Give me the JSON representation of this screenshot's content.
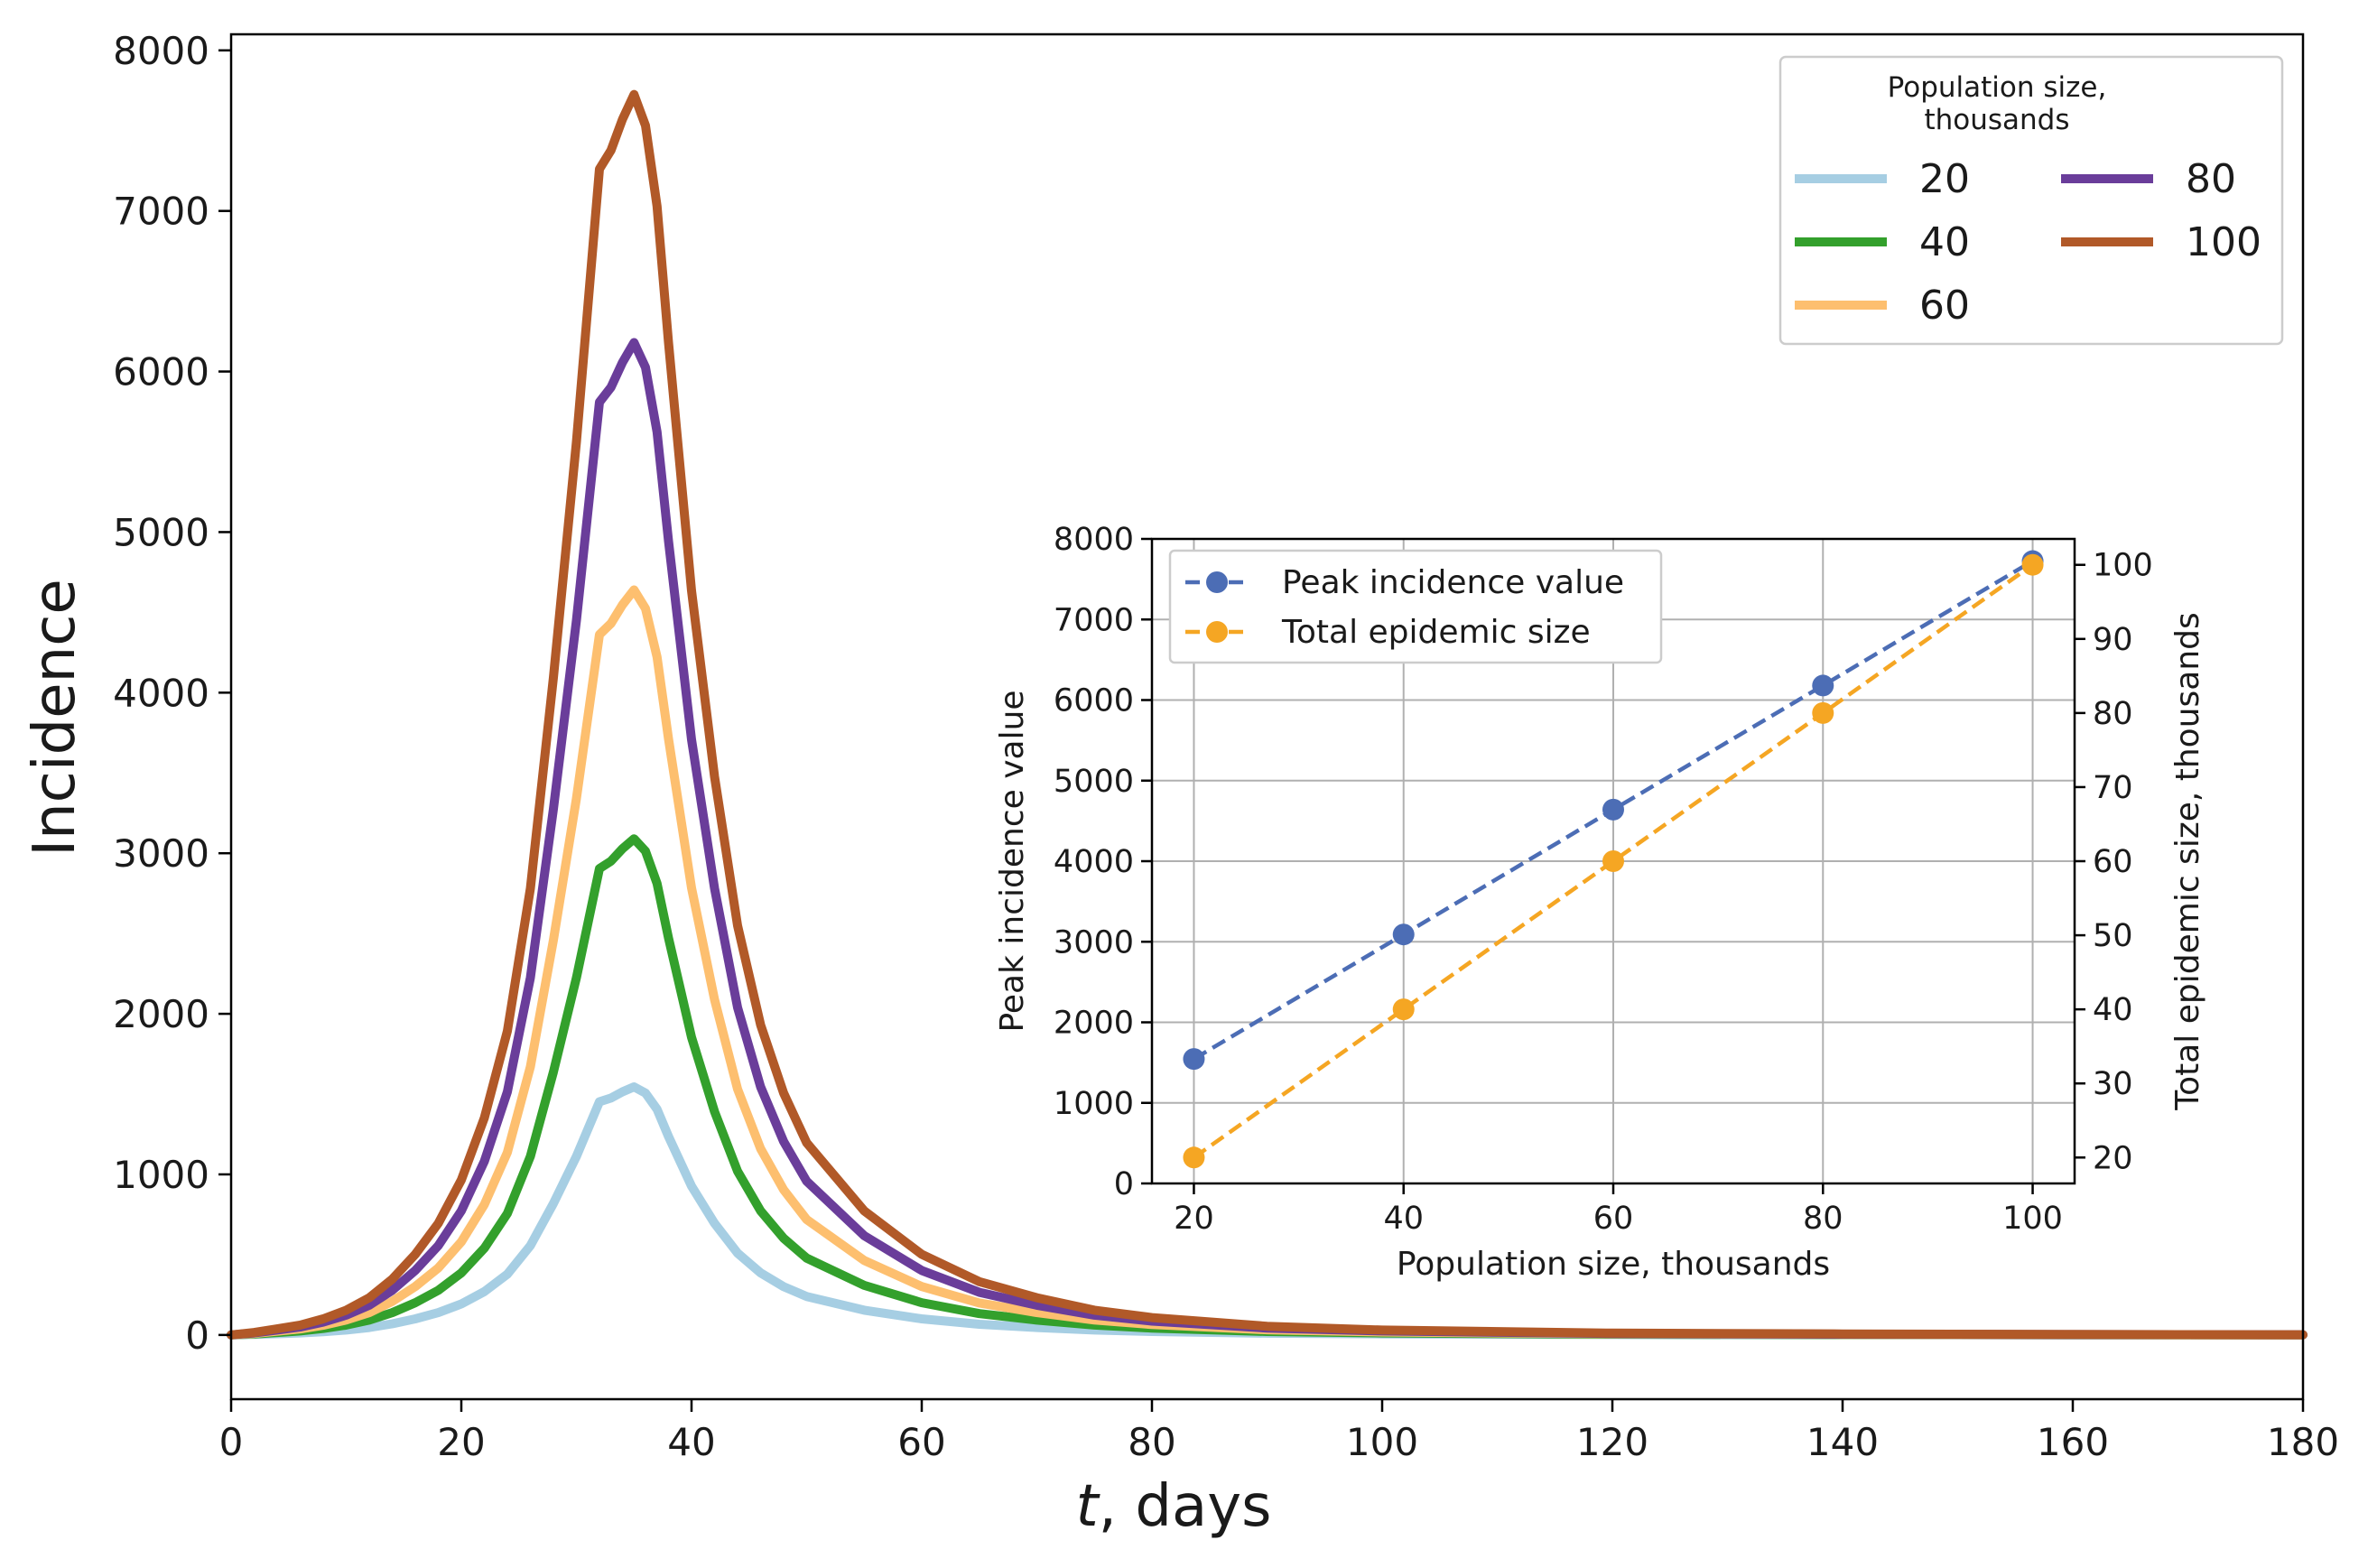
{
  "chart_data": [
    {
      "type": "line",
      "title": "",
      "xlabel": "t, days",
      "xlabel_var": "t",
      "xlabel_rest": ", days",
      "ylabel": "Incidence",
      "xlim": [
        0,
        180
      ],
      "ylim": [
        -400,
        8100
      ],
      "xticks": [
        0,
        20,
        40,
        60,
        80,
        100,
        120,
        140,
        160,
        180
      ],
      "yticks": [
        0,
        1000,
        2000,
        3000,
        4000,
        5000,
        6000,
        7000,
        8000
      ],
      "grid": false,
      "legend": {
        "title_line1": "Population size,",
        "title_line2": "thousands",
        "placement": "top-right",
        "columns": 2
      },
      "x": [
        0,
        2,
        4,
        6,
        8,
        10,
        12,
        14,
        16,
        18,
        20,
        22,
        24,
        26,
        28,
        30,
        32,
        33,
        34,
        35,
        36,
        37,
        38,
        40,
        42,
        44,
        46,
        48,
        50,
        55,
        60,
        65,
        70,
        75,
        80,
        90,
        100,
        120,
        140,
        160,
        180
      ],
      "shape": [
        0.0,
        0.002,
        0.005,
        0.008,
        0.013,
        0.02,
        0.03,
        0.045,
        0.065,
        0.09,
        0.125,
        0.175,
        0.245,
        0.36,
        0.53,
        0.72,
        0.94,
        0.955,
        0.98,
        1.0,
        0.975,
        0.91,
        0.8,
        0.6,
        0.45,
        0.33,
        0.25,
        0.195,
        0.155,
        0.1,
        0.065,
        0.043,
        0.03,
        0.02,
        0.014,
        0.007,
        0.004,
        0.0015,
        0.0008,
        0.0004,
        0.0002
      ],
      "series": [
        {
          "name": "20",
          "peak": 1545,
          "color": "#a6cee3"
        },
        {
          "name": "40",
          "peak": 3090,
          "color": "#33a02c"
        },
        {
          "name": "60",
          "peak": 4640,
          "color": "#fdbf6f"
        },
        {
          "name": "80",
          "peak": 6180,
          "color": "#6a3d9a"
        },
        {
          "name": "100",
          "peak": 7725,
          "color": "#b15928"
        }
      ]
    },
    {
      "type": "line",
      "title": "",
      "xlabel": "Population size, thousands",
      "ylabel": "Peak incidence value",
      "ylabel_right": "Total epidemic size, thousands",
      "categories": [
        20,
        40,
        60,
        80,
        100
      ],
      "xlim": [
        16,
        104
      ],
      "ylim": [
        0,
        8000
      ],
      "ylim_right": [
        16.5,
        103.5
      ],
      "xticks": [
        20,
        40,
        60,
        80,
        100
      ],
      "yticks": [
        0,
        1000,
        2000,
        3000,
        4000,
        5000,
        6000,
        7000,
        8000
      ],
      "yticks_right": [
        20,
        30,
        40,
        50,
        60,
        70,
        80,
        90,
        100
      ],
      "grid": true,
      "legend_placement": "top-left",
      "series": [
        {
          "name": "Peak incidence value",
          "axis": "left",
          "values": [
            1545,
            3090,
            4640,
            6180,
            7725
          ],
          "color": "#4c6db5"
        },
        {
          "name": "Total epidemic size",
          "axis": "right",
          "values": [
            20,
            40,
            60,
            80,
            100
          ],
          "color": "#f5a623"
        }
      ]
    }
  ]
}
